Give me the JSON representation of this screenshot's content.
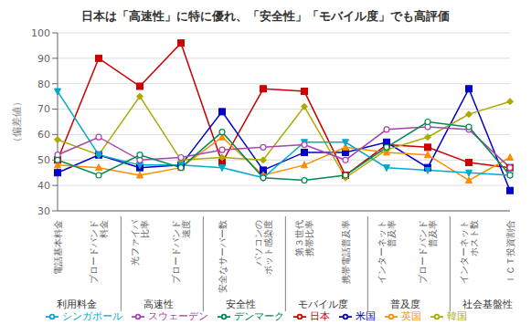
{
  "chart_data": {
    "type": "line",
    "title": "日本は「高速性」に特に優れ、「安全性」「モバイル度」でも高評価",
    "y_label": "（偏差値）",
    "ylim": [
      30,
      100
    ],
    "yticks": [
      30,
      40,
      50,
      60,
      70,
      80,
      90,
      100
    ],
    "grid": true,
    "legend": "bottom",
    "categories": [
      "電話基本料金",
      "ブロードバンド\n料金",
      "光ファイバ\n比率",
      "ブロードバンド\n速度",
      "安全なサーバー数",
      "パソコンの\nボット感染度",
      "第３世代\n携帯比率",
      "携帯電話普及率",
      "インターネット\n普及率",
      "ブロードバンド\n普及率",
      "インターネット\nホスト数",
      "ＩＣＴ投資割合"
    ],
    "groups": [
      {
        "label": "利用料金",
        "span": [
          0,
          1
        ]
      },
      {
        "label": "高速性",
        "span": [
          2,
          3
        ]
      },
      {
        "label": "安全性",
        "span": [
          4,
          5
        ]
      },
      {
        "label": "モバイル度",
        "span": [
          6,
          7
        ]
      },
      {
        "label": "普及度",
        "span": [
          8,
          9
        ]
      },
      {
        "label": "社会基盤性",
        "span": [
          10,
          11
        ]
      }
    ],
    "series": [
      {
        "name": "日本",
        "color": "#cc0000",
        "marker": "square",
        "values": [
          50,
          90,
          79,
          96,
          49,
          78,
          77,
          44,
          56,
          55,
          49,
          47
        ]
      },
      {
        "name": "米国",
        "color": "#0000cc",
        "marker": "square",
        "values": [
          45,
          52,
          47,
          48,
          69,
          46,
          53,
          53,
          57,
          47,
          78,
          38
        ]
      },
      {
        "name": "英国",
        "color": "#ff8c00",
        "marker": "triangle",
        "values": [
          48,
          47,
          44,
          47,
          59,
          44,
          48,
          55,
          53,
          52,
          42,
          51
        ]
      },
      {
        "name": "韓国",
        "color": "#aaaa00",
        "marker": "diamond",
        "values": [
          58,
          52,
          75,
          50,
          51,
          50,
          71,
          43,
          54,
          59,
          68,
          73
        ]
      },
      {
        "name": "シンガポール",
        "color": "#00aacc",
        "marker": "triangle_down",
        "values": [
          77,
          52,
          48,
          48,
          47,
          43,
          57,
          57,
          47,
          46,
          45,
          44
        ]
      },
      {
        "name": "スウェーデン",
        "color": "#aa44aa",
        "marker": "open_circle",
        "values": [
          52,
          59,
          50,
          51,
          54,
          55,
          56,
          50,
          62,
          63,
          62,
          47
        ]
      },
      {
        "name": "デンマーク",
        "color": "#008855",
        "marker": "open_circle",
        "values": [
          50,
          44,
          52,
          47,
          61,
          43,
          42,
          44,
          55,
          65,
          63,
          44
        ]
      }
    ]
  }
}
